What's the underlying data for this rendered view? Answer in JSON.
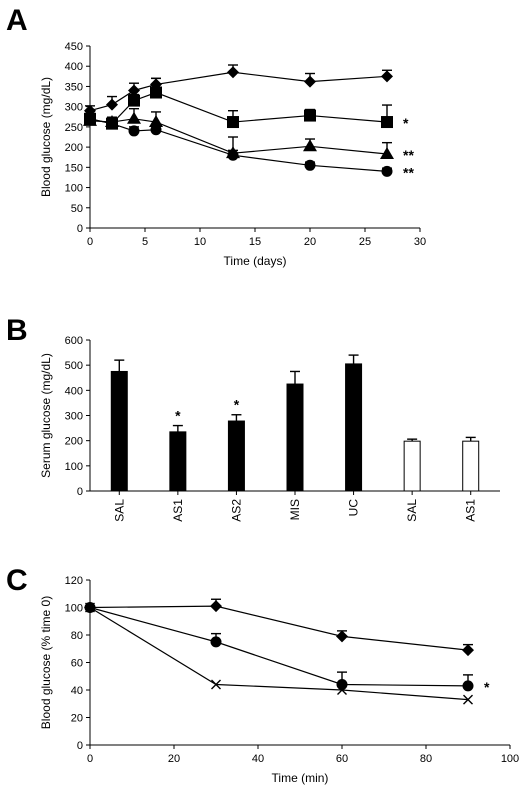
{
  "chart_data": [
    {
      "panel": "A",
      "type": "line",
      "xlabel": "Time (days)",
      "ylabel": "Blood glucose (mg/dL)",
      "xlim": [
        0,
        30
      ],
      "ylim": [
        0,
        450
      ],
      "xticks": [
        0,
        5,
        10,
        15,
        20,
        25,
        30
      ],
      "yticks": [
        0,
        50,
        100,
        150,
        200,
        250,
        300,
        350,
        400,
        450
      ],
      "series": [
        {
          "marker": "diamond",
          "x": [
            0,
            2,
            4,
            6,
            13,
            20,
            27
          ],
          "y": [
            290,
            305,
            340,
            355,
            385,
            362,
            375
          ],
          "err": [
            12,
            20,
            18,
            15,
            18,
            20,
            15
          ],
          "annotation": ""
        },
        {
          "marker": "square",
          "x": [
            0,
            2,
            4,
            6,
            13,
            20,
            27
          ],
          "y": [
            270,
            258,
            315,
            335,
            262,
            278,
            262
          ],
          "err": [
            18,
            15,
            15,
            35,
            28,
            15,
            42
          ],
          "annotation": "*"
        },
        {
          "marker": "triangle",
          "x": [
            0,
            2,
            4,
            6,
            13,
            20,
            27
          ],
          "y": [
            265,
            262,
            270,
            262,
            185,
            202,
            183
          ],
          "err": [
            15,
            12,
            25,
            25,
            40,
            18,
            28
          ],
          "annotation": "**"
        },
        {
          "marker": "circle",
          "x": [
            0,
            2,
            4,
            6,
            13,
            20,
            27
          ],
          "y": [
            270,
            258,
            240,
            243,
            180,
            155,
            140
          ],
          "err": [
            10,
            12,
            10,
            10,
            12,
            8,
            8
          ],
          "annotation": "**"
        }
      ]
    },
    {
      "panel": "B",
      "type": "bar",
      "ylabel": "Serum glucose (mg/dL)",
      "ylim": [
        0,
        600
      ],
      "yticks": [
        0,
        100,
        200,
        300,
        400,
        500,
        600
      ],
      "categories": [
        "SAL",
        "AS1",
        "AS2",
        "MIS",
        "UC",
        "SAL",
        "AS1"
      ],
      "values": [
        475,
        235,
        278,
        425,
        505,
        198,
        198
      ],
      "err": [
        45,
        25,
        25,
        50,
        35,
        8,
        15
      ],
      "fill": [
        "black",
        "black",
        "black",
        "black",
        "black",
        "white",
        "white"
      ],
      "annotations": [
        "",
        "*",
        "*",
        "",
        "",
        "",
        ""
      ]
    },
    {
      "panel": "C",
      "type": "line",
      "xlabel": "Time (min)",
      "ylabel": "Blood glucose (% time 0)",
      "xlim": [
        0,
        100
      ],
      "ylim": [
        0,
        120
      ],
      "xticks": [
        0,
        20,
        40,
        60,
        80,
        100
      ],
      "yticks": [
        0,
        20,
        40,
        60,
        80,
        100,
        120
      ],
      "series": [
        {
          "marker": "diamond",
          "x": [
            0,
            30,
            60,
            90
          ],
          "y": [
            100,
            101,
            79,
            69
          ],
          "err": [
            0,
            5,
            4,
            4
          ],
          "annotation": ""
        },
        {
          "marker": "circle",
          "x": [
            0,
            30,
            60,
            90
          ],
          "y": [
            100,
            75,
            44,
            43
          ],
          "err": [
            0,
            6,
            9,
            8
          ],
          "annotation": "*"
        },
        {
          "marker": "star",
          "x": [
            0,
            30,
            60,
            90
          ],
          "y": [
            100,
            44,
            40,
            33
          ],
          "err": [
            0,
            0,
            0,
            0
          ],
          "annotation": ""
        }
      ]
    }
  ],
  "panels": {
    "a": "A",
    "b": "B",
    "c": "C"
  }
}
